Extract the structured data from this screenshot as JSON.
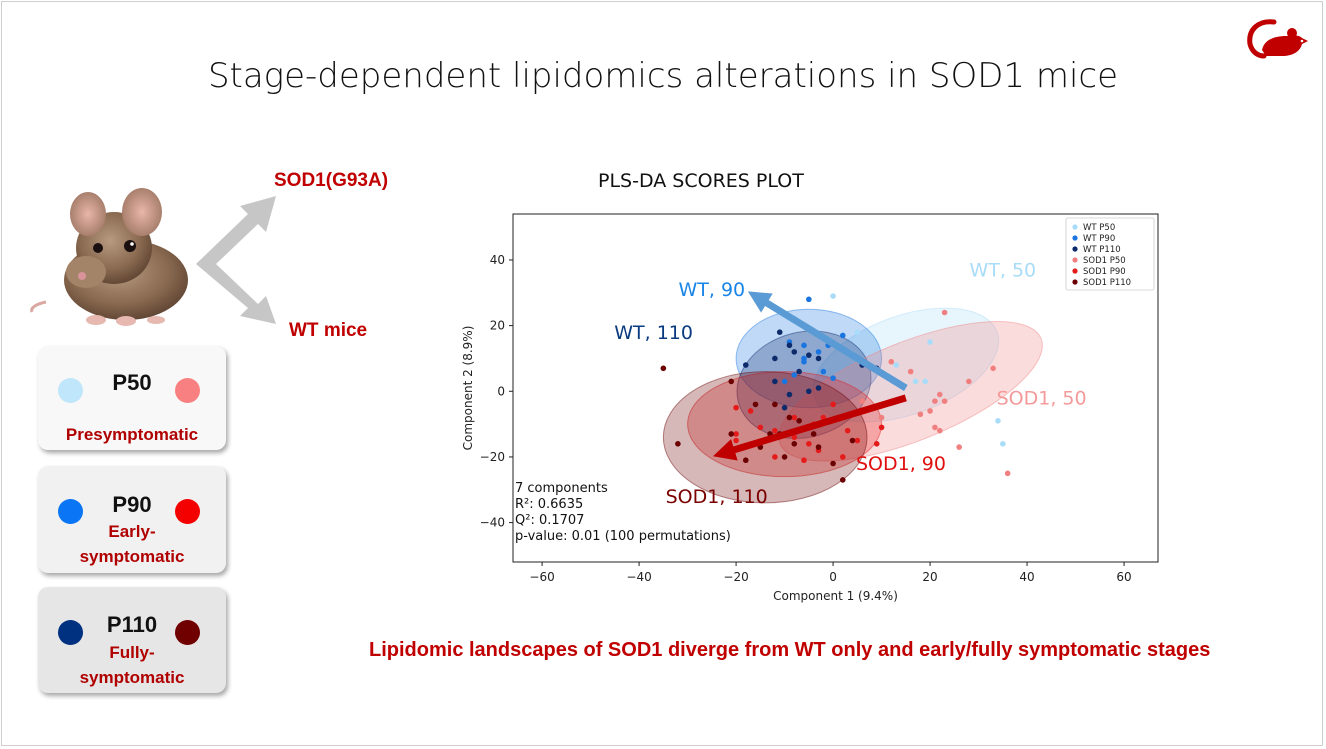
{
  "slide": {
    "title": "Stage-dependent lipidomics alterations in SOD1 mice",
    "genotype_top": "SOD1(G93A)",
    "genotype_bottom": "WT mice",
    "footer": "Lipidomic landscapes of SOD1 diverge from WT only and early/fully symptomatic stages",
    "stages": [
      {
        "name": "P50",
        "desc": "Presymptomatic",
        "wt_color": "#bfe6fb",
        "sod1_color": "#f98080"
      },
      {
        "name": "P90",
        "desc": "Early-\nsymptomatic",
        "wt_color": "#0a75f5",
        "sod1_color": "#f50000"
      },
      {
        "name": "P110",
        "desc": "Fully-\nsymptomatic",
        "wt_color": "#003080",
        "sod1_color": "#700000"
      }
    ]
  },
  "chart_data": {
    "type": "scatter",
    "title": "PLS-DA SCORES PLOT",
    "xlabel": "Component 1 (9.4%)",
    "ylabel": "Component 2 (8.9%)",
    "xlim": [
      -66,
      67
    ],
    "ylim": [
      -52,
      54
    ],
    "xticks": [
      -60,
      -40,
      -20,
      0,
      20,
      40,
      60
    ],
    "yticks": [
      -40,
      -20,
      0,
      20,
      40
    ],
    "legend_position": "top-right",
    "stats": [
      "7 components",
      "R²: 0.6635",
      "Q²: 0.1707",
      "p-value: 0.01 (100 permutations)"
    ],
    "group_labels": [
      {
        "text": "WT, 50",
        "x": 35,
        "y": 35,
        "color": "#a8dcf8"
      },
      {
        "text": "WT, 90",
        "x": -25,
        "y": 29,
        "color": "#1a85e8"
      },
      {
        "text": "WT, 110",
        "x": -37,
        "y": 16,
        "color": "#0a3a80"
      },
      {
        "text": "SOD1, 50",
        "x": 43,
        "y": -4,
        "color": "#f49a9a"
      },
      {
        "text": "SOD1, 90",
        "x": 14,
        "y": -24,
        "color": "#e01010"
      },
      {
        "text": "SOD1, 110",
        "x": -24,
        "y": -34,
        "color": "#7a0000"
      }
    ],
    "arrows": [
      {
        "from": [
          15,
          1
        ],
        "to": [
          -16,
          29
        ],
        "color": "#5b9bd5"
      },
      {
        "from": [
          15,
          -2
        ],
        "to": [
          -23,
          -19
        ],
        "color": "#c00000"
      }
    ],
    "series": [
      {
        "name": "WT P50",
        "color": "#a8dcf8",
        "ellipse": {
          "cx": 15,
          "cy": 8,
          "rx": 20,
          "ry": 15,
          "angle": -20
        },
        "points": [
          [
            0,
            29
          ],
          [
            20,
            15
          ],
          [
            34,
            -9
          ],
          [
            35,
            -16
          ],
          [
            17,
            3
          ],
          [
            19,
            3
          ],
          [
            13,
            8
          ],
          [
            5,
            18
          ]
        ]
      },
      {
        "name": "WT P90",
        "color": "#1a75e0",
        "ellipse": {
          "cx": -5,
          "cy": 10,
          "rx": 15,
          "ry": 15,
          "angle": 0
        },
        "points": [
          [
            -5,
            28
          ],
          [
            -9,
            15
          ],
          [
            -6,
            14
          ],
          [
            -3,
            12
          ],
          [
            -1,
            14
          ],
          [
            2,
            17
          ],
          [
            -6,
            10
          ],
          [
            3,
            12
          ],
          [
            5,
            10
          ],
          [
            -8,
            5
          ],
          [
            -10,
            3
          ],
          [
            0,
            4
          ],
          [
            -6,
            9
          ],
          [
            -2,
            6
          ]
        ]
      },
      {
        "name": "WT P110",
        "color": "#0d2b6b",
        "ellipse": {
          "cx": -6,
          "cy": 2,
          "rx": 14,
          "ry": 16,
          "angle": -15
        },
        "points": [
          [
            -8,
            22
          ],
          [
            -11,
            18
          ],
          [
            -9,
            14
          ],
          [
            -8,
            12
          ],
          [
            -5,
            11
          ],
          [
            -3,
            10
          ],
          [
            -12,
            10
          ],
          [
            -18,
            8
          ],
          [
            -12,
            3
          ],
          [
            -7,
            6
          ],
          [
            -5,
            0
          ],
          [
            -3,
            1
          ],
          [
            6,
            8
          ],
          [
            9,
            7
          ],
          [
            -9,
            -1
          ],
          [
            -10,
            -5
          ]
        ]
      },
      {
        "name": "SOD1 P50",
        "color": "#f08080",
        "ellipse": {
          "cx": 16,
          "cy": 0,
          "rx": 29,
          "ry": 15,
          "angle": -22
        },
        "points": [
          [
            23,
            24
          ],
          [
            33,
            7
          ],
          [
            36,
            -25
          ],
          [
            26,
            -17
          ],
          [
            18,
            -7
          ],
          [
            20,
            -6
          ],
          [
            21,
            -11
          ],
          [
            22,
            -12
          ],
          [
            28,
            3
          ],
          [
            21,
            -3
          ],
          [
            16,
            6
          ],
          [
            12,
            9
          ],
          [
            10,
            -8
          ],
          [
            6,
            -3
          ],
          [
            23,
            -3
          ],
          [
            22,
            -1
          ]
        ]
      },
      {
        "name": "SOD1 P90",
        "color": "#e51a1a",
        "ellipse": {
          "cx": -10,
          "cy": -10,
          "rx": 20,
          "ry": 16,
          "angle": 0
        },
        "points": [
          [
            -20,
            -5
          ],
          [
            -17,
            -6
          ],
          [
            -20,
            -13
          ],
          [
            -15,
            -11
          ],
          [
            -12,
            -12
          ],
          [
            -8,
            -14
          ],
          [
            -5,
            -16
          ],
          [
            -3,
            -18
          ],
          [
            3,
            -12
          ],
          [
            5,
            -15
          ],
          [
            9,
            -16
          ],
          [
            -20,
            -15
          ],
          [
            -12,
            -20
          ],
          [
            -6,
            -21
          ],
          [
            2,
            -20
          ],
          [
            10,
            -11
          ],
          [
            -8,
            -8
          ],
          [
            -4,
            -10
          ],
          [
            -2,
            -8
          ],
          [
            0,
            -4
          ]
        ]
      },
      {
        "name": "SOD1 P110",
        "color": "#6b0000",
        "ellipse": {
          "cx": -14,
          "cy": -14,
          "rx": 21,
          "ry": 20,
          "angle": 0
        },
        "points": [
          [
            -35,
            7
          ],
          [
            -32,
            -16
          ],
          [
            -21,
            3
          ],
          [
            -21,
            -13
          ],
          [
            -18,
            -21
          ],
          [
            -15,
            -17
          ],
          [
            -13,
            -13
          ],
          [
            -11,
            -13
          ],
          [
            -9,
            -8
          ],
          [
            -7,
            -9
          ],
          [
            -5,
            -11
          ],
          [
            -4,
            -13
          ],
          [
            -8,
            -16
          ],
          [
            -10,
            -20
          ],
          [
            -3,
            -17
          ],
          [
            0,
            -22
          ],
          [
            2,
            -27
          ],
          [
            4,
            -15
          ],
          [
            -16,
            -4
          ],
          [
            -12,
            -4
          ]
        ]
      }
    ]
  }
}
